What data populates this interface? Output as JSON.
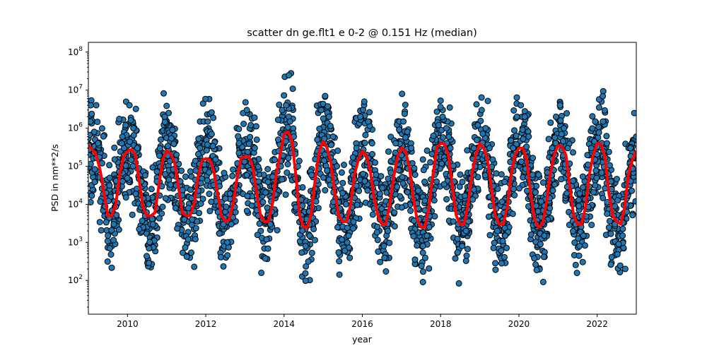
{
  "chart_data": {
    "type": "scatter",
    "title": "scatter dn ge.flt1 e 0-2 @ 0.151 Hz (median)",
    "xlabel": "year",
    "ylabel": "PSD in nm**2/s",
    "xlim": [
      2009.0,
      2023.0
    ],
    "ylim": [
      13,
      180000000
    ],
    "yscale": "log",
    "grid": false,
    "x_ticks": [
      2010,
      2012,
      2014,
      2016,
      2018,
      2020,
      2022
    ],
    "x_tick_labels": [
      "2010",
      "2012",
      "2014",
      "2016",
      "2018",
      "2020",
      "2022"
    ],
    "y_ticks": [
      {
        "base": "10",
        "exp": "2",
        "value": 100
      },
      {
        "base": "10",
        "exp": "3",
        "value": 1000
      },
      {
        "base": "10",
        "exp": "4",
        "value": 10000
      },
      {
        "base": "10",
        "exp": "5",
        "value": 100000
      },
      {
        "base": "10",
        "exp": "6",
        "value": 1000000
      },
      {
        "base": "10",
        "exp": "7",
        "value": 10000000
      },
      {
        "base": "10",
        "exp": "8",
        "value": 100000000
      }
    ],
    "colors": {
      "scatter_fill": "#1f77b4",
      "scatter_edge": "#000000",
      "median_line": "#ff0000"
    },
    "series": [
      {
        "kind": "scatter",
        "description_points": "individual PSD values, annual cycle between about 1e3 and 3e6",
        "x": [
          2009.05,
          2009.15,
          2009.25,
          2009.35,
          2009.45,
          2009.5,
          2009.55,
          2009.65,
          2009.75,
          2009.85,
          2009.95,
          2010.05,
          2010.15,
          2010.25,
          2010.35,
          2010.45,
          2010.55,
          2010.65,
          2010.75,
          2010.85,
          2010.95,
          2011.05,
          2011.15,
          2011.25,
          2011.35,
          2011.45,
          2011.55,
          2011.65,
          2011.75,
          2011.85,
          2011.95,
          2012.05,
          2012.15,
          2012.25,
          2012.35,
          2012.45,
          2012.55,
          2012.65,
          2012.75,
          2012.85,
          2012.95,
          2013.05,
          2013.15,
          2013.25,
          2013.35,
          2013.45,
          2013.55,
          2013.65,
          2013.75,
          2013.85,
          2013.95,
          2014.05,
          2014.15,
          2014.25,
          2014.35,
          2014.45,
          2014.55,
          2014.65,
          2014.75,
          2014.85,
          2014.95,
          2015.05,
          2015.15,
          2015.25,
          2015.35,
          2015.45,
          2015.55,
          2015.65,
          2015.75,
          2015.85,
          2015.95,
          2016.05,
          2016.15,
          2016.25,
          2016.35,
          2016.45,
          2016.55,
          2016.65,
          2016.75,
          2016.85,
          2016.95,
          2017.05,
          2017.15,
          2017.25,
          2017.35,
          2017.45,
          2017.55,
          2017.65,
          2017.75,
          2017.85,
          2017.95,
          2018.05,
          2018.15,
          2018.25,
          2018.35,
          2018.45,
          2018.55,
          2018.65,
          2018.75,
          2018.85,
          2018.95,
          2019.05,
          2019.15,
          2019.25,
          2019.35,
          2019.45,
          2019.55,
          2019.65,
          2019.75,
          2019.85,
          2019.95,
          2020.05,
          2020.15,
          2020.25,
          2020.35,
          2020.45,
          2020.55,
          2020.65,
          2020.75,
          2020.85,
          2020.95,
          2021.05,
          2021.15,
          2021.25,
          2021.35,
          2021.45,
          2021.55,
          2021.65,
          2021.75,
          2021.85,
          2021.95,
          2022.05,
          2022.15,
          2022.25,
          2022.35,
          2022.45,
          2022.55,
          2022.65,
          2022.75,
          2022.85,
          2022.95
        ],
        "y": [
          1500000,
          800000,
          400000,
          120000,
          20000,
          1500,
          700,
          3000,
          30000,
          400000,
          1200000,
          4000000,
          1000000,
          300000,
          40000,
          5000,
          700,
          3000,
          40000,
          500000,
          2000000,
          2500000,
          900000,
          200000,
          40000,
          4000,
          1200,
          4000,
          30000,
          300000,
          1500000,
          1500000,
          700000,
          150000,
          30000,
          3000,
          1000,
          3000,
          30000,
          400000,
          2500000,
          3000000,
          1200000,
          300000,
          40000,
          4000,
          1200,
          3000,
          30000,
          500000,
          3000000,
          4000000,
          1500000,
          600000,
          100000,
          4000,
          800,
          1500,
          20000,
          500000,
          3000000,
          7000000,
          2000000,
          600000,
          100000,
          5000,
          600,
          1500,
          20000,
          300000,
          2000000,
          5000000,
          1500000,
          400000,
          60000,
          4000,
          800,
          2000,
          30000,
          400000,
          1500000,
          1500000,
          800000,
          300000,
          60000,
          4000,
          800,
          1500,
          30000,
          300000,
          1200000,
          2000000,
          1000000,
          300000,
          40000,
          3000,
          800,
          2000,
          30000,
          300000,
          1200000,
          3000000,
          1000000,
          300000,
          30000,
          2000,
          600,
          1500,
          20000,
          300000,
          2000000,
          4000000,
          2000000,
          600000,
          60000,
          3000,
          900,
          1500,
          30000,
          300000,
          2000000,
          4000000,
          1000000,
          300000,
          30000,
          3000,
          800,
          1500,
          20000,
          300000,
          1500000,
          3500000,
          1500000,
          400000,
          40000,
          3000,
          900,
          1500,
          20000,
          300000,
          2500000
        ]
      },
      {
        "kind": "line",
        "description_points": "running median",
        "x": [
          2009.0,
          2009.1,
          2009.2,
          2009.3,
          2009.4,
          2009.5,
          2009.6,
          2009.7,
          2009.8,
          2009.9,
          2010.0,
          2010.1,
          2010.2,
          2010.3,
          2010.4,
          2010.5,
          2010.6,
          2010.7,
          2010.8,
          2010.9,
          2011.0,
          2011.1,
          2011.2,
          2011.3,
          2011.4,
          2011.5,
          2011.6,
          2011.7,
          2011.8,
          2011.9,
          2012.0,
          2012.1,
          2012.2,
          2012.3,
          2012.4,
          2012.5,
          2012.6,
          2012.7,
          2012.8,
          2012.9,
          2013.0,
          2013.1,
          2013.2,
          2013.3,
          2013.4,
          2013.5,
          2013.6,
          2013.7,
          2013.8,
          2013.9,
          2014.0,
          2014.1,
          2014.2,
          2014.3,
          2014.4,
          2014.5,
          2014.6,
          2014.7,
          2014.8,
          2014.9,
          2015.0,
          2015.1,
          2015.2,
          2015.3,
          2015.4,
          2015.5,
          2015.6,
          2015.7,
          2015.8,
          2015.9,
          2016.0,
          2016.1,
          2016.2,
          2016.3,
          2016.4,
          2016.5,
          2016.6,
          2016.7,
          2016.8,
          2016.9,
          2017.0,
          2017.1,
          2017.2,
          2017.3,
          2017.4,
          2017.5,
          2017.6,
          2017.7,
          2017.8,
          2017.9,
          2018.0,
          2018.1,
          2018.2,
          2018.3,
          2018.4,
          2018.5,
          2018.6,
          2018.7,
          2018.8,
          2018.9,
          2019.0,
          2019.1,
          2019.2,
          2019.3,
          2019.4,
          2019.5,
          2019.6,
          2019.7,
          2019.8,
          2019.9,
          2020.0,
          2020.1,
          2020.2,
          2020.3,
          2020.4,
          2020.5,
          2020.6,
          2020.7,
          2020.8,
          2020.9,
          2021.0,
          2021.1,
          2021.2,
          2021.3,
          2021.4,
          2021.5,
          2021.6,
          2021.7,
          2021.8,
          2021.9,
          2022.0,
          2022.1,
          2022.2,
          2022.3,
          2022.4,
          2022.5,
          2022.6,
          2022.7,
          2022.8,
          2022.9,
          2023.0
        ],
        "y": [
          350000,
          280000,
          200000,
          80000,
          20000,
          5000,
          5000,
          10000,
          60000,
          180000,
          250000,
          280000,
          200000,
          40000,
          8000,
          5000,
          5000,
          6000,
          30000,
          150000,
          250000,
          220000,
          130000,
          30000,
          6000,
          5000,
          5000,
          10000,
          50000,
          140000,
          160000,
          150000,
          80000,
          20000,
          5000,
          3500,
          4000,
          10000,
          50000,
          160000,
          180000,
          180000,
          100000,
          20000,
          5000,
          3500,
          3500,
          10000,
          60000,
          200000,
          700000,
          800000,
          500000,
          60000,
          5000,
          2500,
          2500,
          6000,
          50000,
          250000,
          450000,
          300000,
          120000,
          20000,
          5000,
          3500,
          3500,
          10000,
          60000,
          150000,
          250000,
          200000,
          80000,
          15000,
          5000,
          3000,
          3000,
          10000,
          50000,
          180000,
          300000,
          250000,
          100000,
          15000,
          4000,
          2500,
          2500,
          8000,
          50000,
          300000,
          400000,
          380000,
          200000,
          30000,
          5000,
          3000,
          3000,
          10000,
          60000,
          200000,
          400000,
          300000,
          150000,
          25000,
          5000,
          3000,
          3000,
          8000,
          60000,
          200000,
          300000,
          300000,
          150000,
          20000,
          4000,
          2500,
          3000,
          10000,
          60000,
          200000,
          350000,
          330000,
          200000,
          30000,
          5000,
          3000,
          3000,
          8000,
          60000,
          200000,
          400000,
          380000,
          180000,
          20000,
          5000,
          3500,
          3000,
          8000,
          60000,
          150000,
          250000
        ]
      }
    ]
  }
}
